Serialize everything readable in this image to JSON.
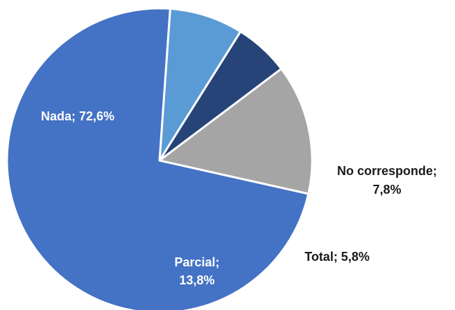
{
  "chart_data": {
    "type": "pie",
    "title": "",
    "start_angle_deg": 86,
    "direction": "clockwise",
    "slices": [
      {
        "name": "No corresponde",
        "value": 7.8,
        "label": [
          "No corresponde;",
          "7,8%"
        ],
        "color": "#5b9bd5",
        "label_color": "#1a1a1a",
        "label_placement": "outside-right"
      },
      {
        "name": "Total",
        "value": 5.8,
        "label": [
          "Total; 5,8%"
        ],
        "color": "#264478",
        "label_color": "#1a1a1a",
        "label_placement": "outside-right"
      },
      {
        "name": "Parcial",
        "value": 13.8,
        "label": [
          "Parcial;",
          "13,8%"
        ],
        "color": "#a5a5a5",
        "label_color": "#ffffff",
        "label_placement": "inside"
      },
      {
        "name": "Nada",
        "value": 72.6,
        "label": [
          "Nada; 72,6%"
        ],
        "color": "#4472c4",
        "label_color": "#ffffff",
        "label_placement": "inside"
      }
    ]
  }
}
